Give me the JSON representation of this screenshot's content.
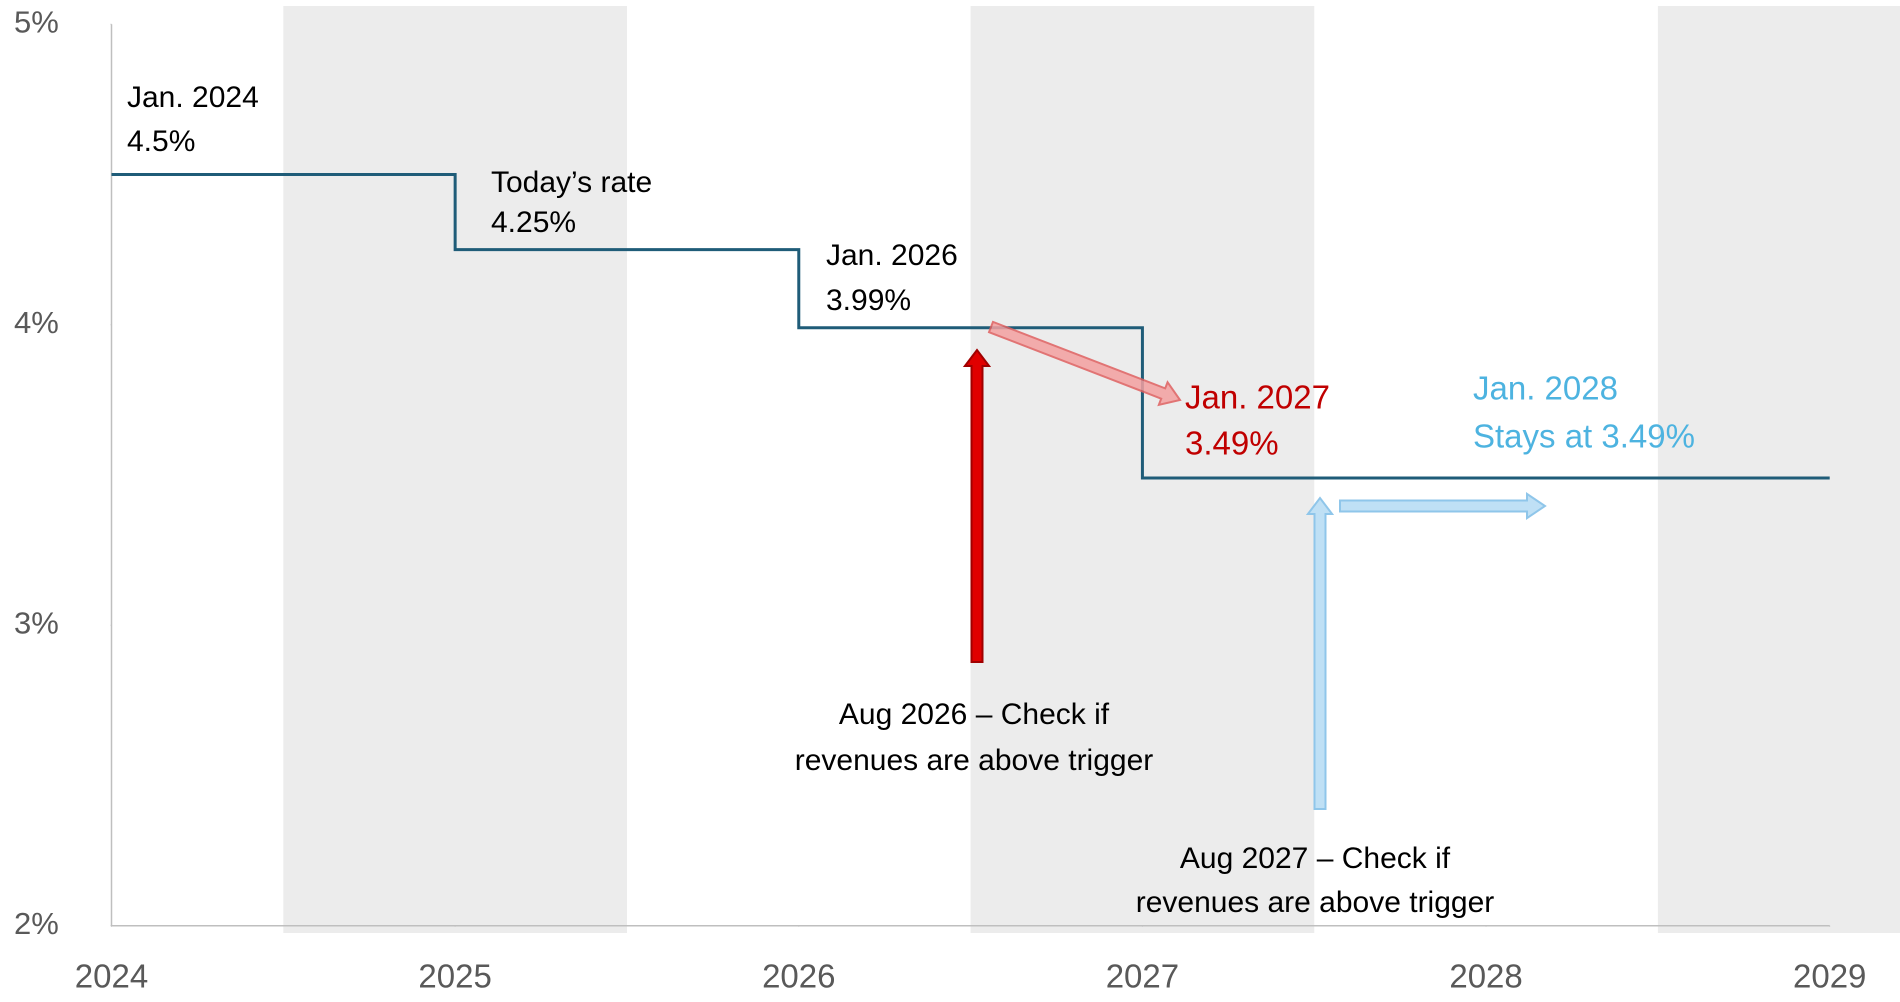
{
  "chart_data": {
    "type": "step",
    "x": [
      2024,
      2025,
      2026,
      2027,
      2029
    ],
    "series": [
      {
        "color": "#1f5c78",
        "values": [
          4.5,
          4.25,
          3.99,
          3.49,
          3.49
        ]
      }
    ],
    "xlim": [
      2024,
      2029
    ],
    "xticks": [
      2024,
      2025,
      2026,
      2027,
      2028,
      2029
    ],
    "ylim": [
      2,
      5
    ],
    "yticks": [
      {
        "value": 2,
        "label": "2%"
      },
      {
        "value": 3,
        "label": "3%"
      },
      {
        "value": 4,
        "label": "4%"
      },
      {
        "value": 5,
        "label": "5%"
      }
    ],
    "annotations": [
      {
        "lines": [
          "Jan. 2024",
          "4.5%"
        ],
        "color": "#000000"
      },
      {
        "lines": [
          "Today’s rate",
          "4.25%"
        ],
        "color": "#000000"
      },
      {
        "lines": [
          "Jan. 2026",
          "3.99%"
        ],
        "color": "#000000"
      },
      {
        "lines": [
          "Jan. 2027",
          "3.49%"
        ],
        "color": "#c00000"
      },
      {
        "lines": [
          "Jan. 2028",
          "Stays at 3.49%"
        ],
        "color": "#4db3e0"
      },
      {
        "lines": [
          "Aug 2026 – Check if",
          "revenues are above trigger"
        ],
        "color": "#000000"
      },
      {
        "lines": [
          "Aug 2027 – Check if",
          "revenues are above trigger"
        ],
        "color": "#000000"
      }
    ]
  }
}
